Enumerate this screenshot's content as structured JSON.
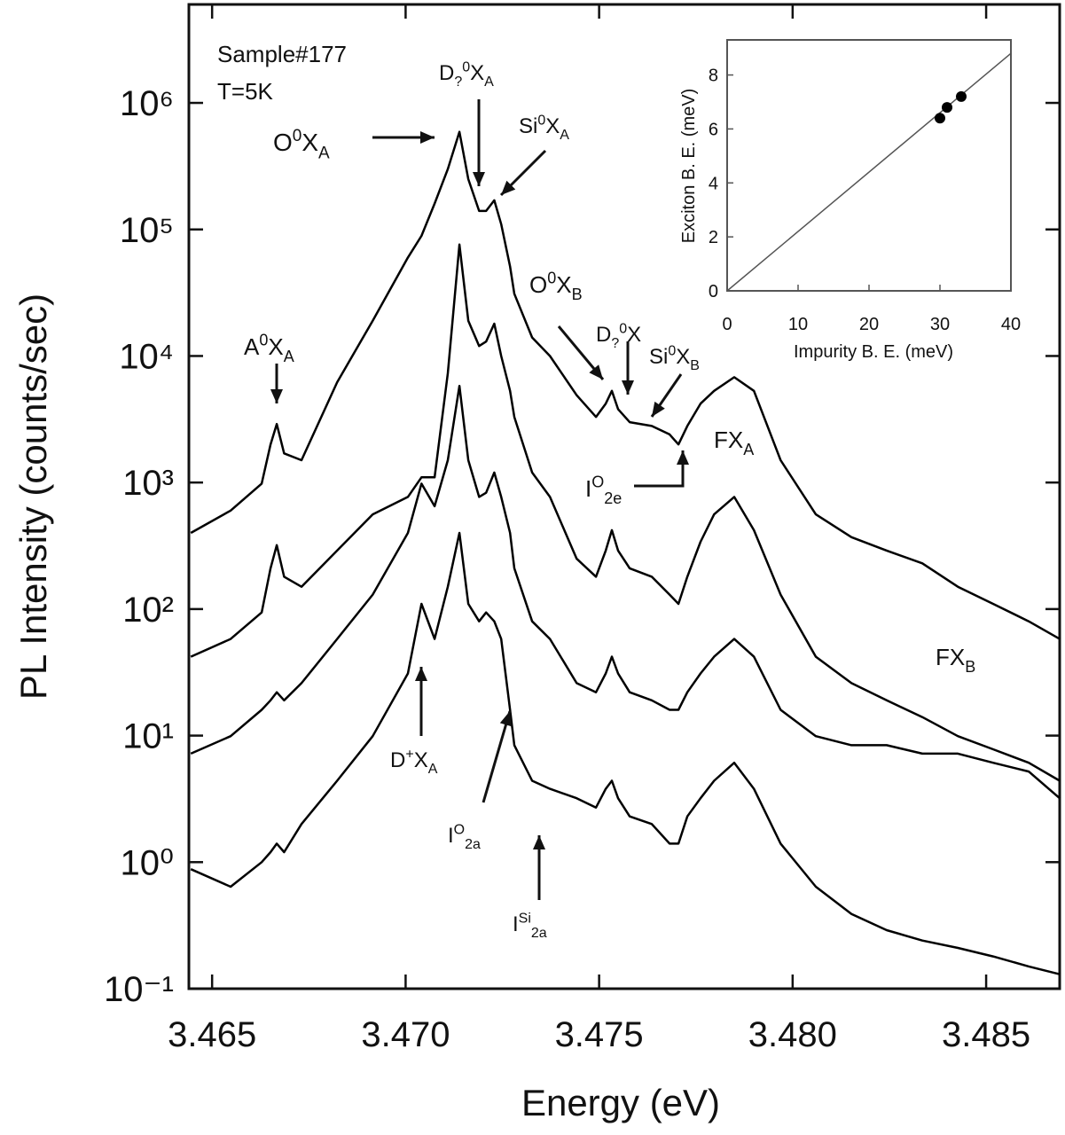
{
  "chart_data": [
    {
      "type": "line",
      "xlabel": "Energy (eV)",
      "ylabel": "PL Intensity (counts/sec)",
      "log_y": true,
      "xlim": [
        3.4644,
        3.4869
      ],
      "ylim": [
        0.1,
        6000000
      ],
      "xticks": [
        {
          "value": 3.465,
          "label": "3.465"
        },
        {
          "value": 3.47,
          "label": "3.470"
        },
        {
          "value": 3.475,
          "label": "3.475"
        },
        {
          "value": 3.48,
          "label": "3.480"
        },
        {
          "value": 3.485,
          "label": "3.485"
        }
      ],
      "yticks": [
        {
          "value": 0.1,
          "label": "10⁻¹"
        },
        {
          "value": 1,
          "label": "10⁰"
        },
        {
          "value": 10,
          "label": "10¹"
        },
        {
          "value": 100,
          "label": "10²"
        },
        {
          "value": 1000,
          "label": "10³"
        },
        {
          "value": 10000,
          "label": "10⁴"
        },
        {
          "value": 100000,
          "label": "10⁵"
        },
        {
          "value": 1000000,
          "label": "10⁶"
        }
      ],
      "x": [
        3.46445,
        3.46548,
        3.46628,
        3.46651,
        3.46667,
        3.46686,
        3.46731,
        3.46823,
        3.46915,
        3.47006,
        3.47041,
        3.47075,
        3.47109,
        3.47139,
        3.47162,
        3.4719,
        3.47208,
        3.47229,
        3.47247,
        3.4727,
        3.47281,
        3.47327,
        3.47373,
        3.47442,
        3.47492,
        3.47517,
        3.47533,
        3.47549,
        3.47579,
        3.47636,
        3.47682,
        3.47705,
        3.47728,
        3.47762,
        3.47797,
        3.47849,
        3.479,
        3.47969,
        3.4806,
        3.48152,
        3.48243,
        3.48335,
        3.48427,
        3.48518,
        3.4861,
        3.4869
      ],
      "series": [
        {
          "color": "#000000",
          "values": [
            400,
            600,
            980,
            2000,
            2900,
            1700,
            1500,
            6200,
            19000,
            60000,
            89000,
            160000,
            300000,
            590000,
            250000,
            140000,
            140000,
            170000,
            110000,
            51000,
            31000,
            14000,
            10000,
            4900,
            3300,
            4200,
            5300,
            3800,
            3000,
            2800,
            2400,
            2000,
            2800,
            4200,
            5300,
            6800,
            5300,
            1500,
            560,
            370,
            290,
            230,
            150,
            110,
            80,
            58
          ]
        },
        {
          "color": "#000000",
          "values": [
            42,
            58,
            94,
            210,
            320,
            180,
            150,
            290,
            560,
            770,
            1100,
            1100,
            7300,
            76000,
            19000,
            12000,
            13000,
            18000,
            10000,
            5300,
            3300,
            1200,
            770,
            250,
            180,
            290,
            420,
            290,
            210,
            180,
            130,
            110,
            180,
            340,
            560,
            770,
            420,
            130,
            42,
            26,
            19,
            14,
            9.9,
            7.8,
            6.1,
            4.4
          ]
        },
        {
          "color": "#000000",
          "values": [
            7.2,
            9.9,
            16,
            19,
            22,
            19,
            26,
            58,
            130,
            400,
            980,
            650,
            1500,
            5800,
            1500,
            770,
            830,
            1200,
            770,
            400,
            210,
            80,
            58,
            26,
            22,
            31,
            42,
            31,
            22,
            19,
            16,
            16,
            22,
            31,
            42,
            58,
            42,
            16,
            9.9,
            8.4,
            8.4,
            7.2,
            7.2,
            6.1,
            5.2,
            3.2
          ]
        },
        {
          "color": "#000000",
          "values": [
            0.88,
            0.64,
            1.0,
            1.2,
            1.4,
            1.2,
            2.0,
            4.4,
            9.9,
            31,
            110,
            58,
            150,
            400,
            110,
            80,
            94,
            80,
            58,
            16,
            8.4,
            4.4,
            3.8,
            3.2,
            2.7,
            3.8,
            4.4,
            3.2,
            2.3,
            2.0,
            1.4,
            1.4,
            2.3,
            3.2,
            4.4,
            6.1,
            3.8,
            1.4,
            0.64,
            0.39,
            0.29,
            0.24,
            0.21,
            0.18,
            0.15,
            0.13
          ]
        }
      ],
      "annotations": [
        [
          {
            "text": "Sample#177"
          }
        ],
        [
          {
            "text": "T=5K"
          }
        ],
        [
          {
            "text": "O"
          },
          {
            "text": "0",
            "pos": "sup"
          },
          {
            "text": "X"
          },
          {
            "text": "A",
            "pos": "sub"
          }
        ],
        [
          {
            "text": "D"
          },
          {
            "text": "?",
            "pos": "sub"
          },
          {
            "text": "0",
            "pos": "sup"
          },
          {
            "text": "X"
          },
          {
            "text": "A",
            "pos": "sub"
          }
        ],
        [
          {
            "text": "Si"
          },
          {
            "text": "0",
            "pos": "sup"
          },
          {
            "text": "X"
          },
          {
            "text": "A",
            "pos": "sub"
          }
        ],
        [
          {
            "text": "A"
          },
          {
            "text": "0",
            "pos": "sup"
          },
          {
            "text": "X"
          },
          {
            "text": "A",
            "pos": "sub"
          }
        ],
        [
          {
            "text": "O"
          },
          {
            "text": "0",
            "pos": "sup"
          },
          {
            "text": "X"
          },
          {
            "text": "B",
            "pos": "sub"
          }
        ],
        [
          {
            "text": "D"
          },
          {
            "text": "?",
            "pos": "sub"
          },
          {
            "text": "0",
            "pos": "sup"
          },
          {
            "text": "X"
          }
        ],
        [
          {
            "text": "Si"
          },
          {
            "text": "0",
            "pos": "sup"
          },
          {
            "text": "X"
          },
          {
            "text": "B",
            "pos": "sub"
          }
        ],
        [
          {
            "text": "FX"
          },
          {
            "text": "A",
            "pos": "sub"
          }
        ],
        [
          {
            "text": "I"
          },
          {
            "text": "O",
            "pos": "sup"
          },
          {
            "text": "2e",
            "pos": "sub"
          }
        ],
        [
          {
            "text": "FX"
          },
          {
            "text": "B",
            "pos": "sub"
          }
        ],
        [
          {
            "text": "D"
          },
          {
            "text": "+",
            "pos": "sup"
          },
          {
            "text": "X"
          },
          {
            "text": "A",
            "pos": "sub"
          }
        ],
        [
          {
            "text": "I"
          },
          {
            "text": "O",
            "pos": "sup"
          },
          {
            "text": "2a",
            "pos": "sub"
          }
        ],
        [
          {
            "text": "I"
          },
          {
            "text": "Si",
            "pos": "sup"
          },
          {
            "text": "2a",
            "pos": "sub"
          }
        ]
      ]
    },
    {
      "type": "scatter",
      "xlabel": "Impurity B. E. (meV)",
      "ylabel": "Exciton B. E. (meV)",
      "xlim": [
        0,
        40
      ],
      "ylim": [
        0,
        9.3
      ],
      "xticks": [
        0,
        10,
        20,
        30,
        40
      ],
      "yticks": [
        0,
        2,
        4,
        6,
        8
      ],
      "color": "#000000",
      "x": [
        30,
        31,
        33
      ],
      "values": [
        6.4,
        6.8,
        7.2
      ],
      "line": {
        "x": [
          0,
          40
        ],
        "values": [
          0,
          8.8
        ]
      }
    }
  ]
}
